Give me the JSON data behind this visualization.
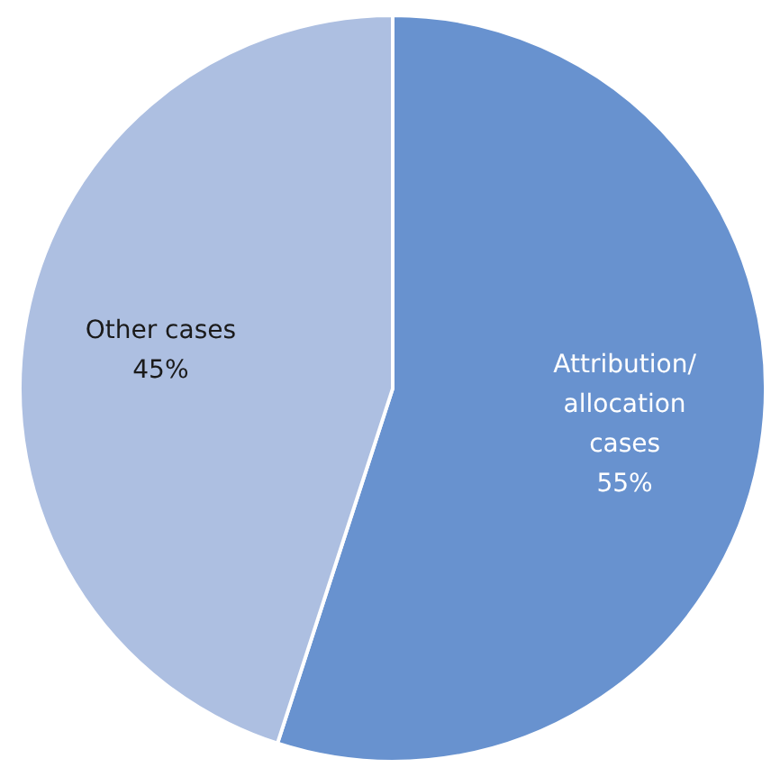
{
  "chart_data": {
    "type": "pie",
    "categories": [
      "Attribution/allocation cases",
      "Other cases"
    ],
    "values": [
      55,
      45
    ],
    "colors": [
      "#6892cf",
      "#adbfe1"
    ],
    "value_labels": [
      "55%",
      "45%"
    ],
    "legend": false
  }
}
